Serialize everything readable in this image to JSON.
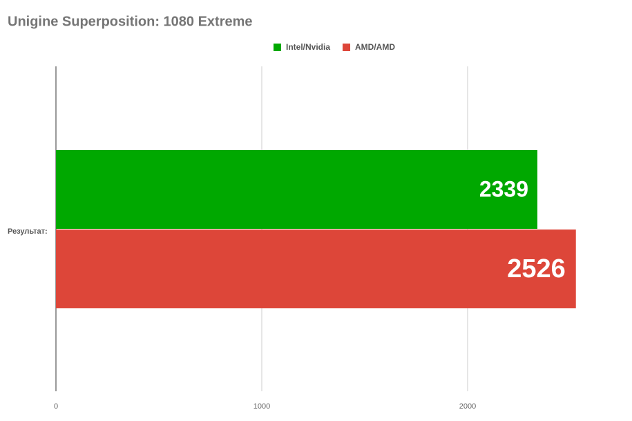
{
  "chart_data": {
    "type": "hbar",
    "title": "Unigine Superposition: 1080 Extreme",
    "categories": [
      "Результат:"
    ],
    "series": [
      {
        "name": "Intel/Nvidia",
        "color": "#00a800",
        "values": [
          2339
        ]
      },
      {
        "name": "AMD/AMD",
        "color": "#dd4639",
        "values": [
          2526
        ]
      }
    ],
    "xlim": [
      0,
      2700
    ],
    "xticks": [
      0,
      1000,
      2000
    ],
    "grid": true,
    "legend": "top"
  }
}
